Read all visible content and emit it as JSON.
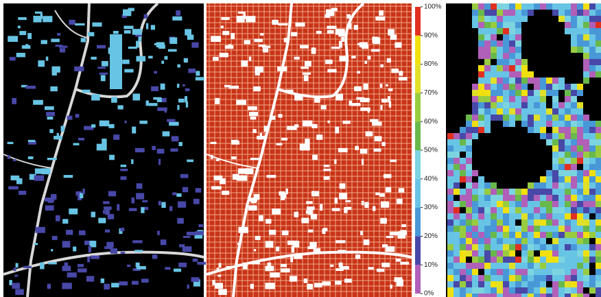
{
  "colorbar": {
    "ticks": [
      {
        "value": 0,
        "label": "0%"
      },
      {
        "value": 10,
        "label": "10%"
      },
      {
        "value": 20,
        "label": "20%"
      },
      {
        "value": 30,
        "label": "30%"
      },
      {
        "value": 40,
        "label": "40%"
      },
      {
        "value": 50,
        "label": "50%"
      },
      {
        "value": 60,
        "label": "60%"
      },
      {
        "value": 70,
        "label": "70%"
      },
      {
        "value": 80,
        "label": "80%"
      },
      {
        "value": 90,
        "label": "90%"
      },
      {
        "value": 100,
        "label": "100%"
      }
    ],
    "colors": [
      "#b060b8",
      "#4848a8",
      "#4898d8",
      "#68c4e4",
      "#7cd4e0",
      "#68b84c",
      "#98cc40",
      "#e0e028",
      "#f0e010",
      "#e03020"
    ]
  }
}
